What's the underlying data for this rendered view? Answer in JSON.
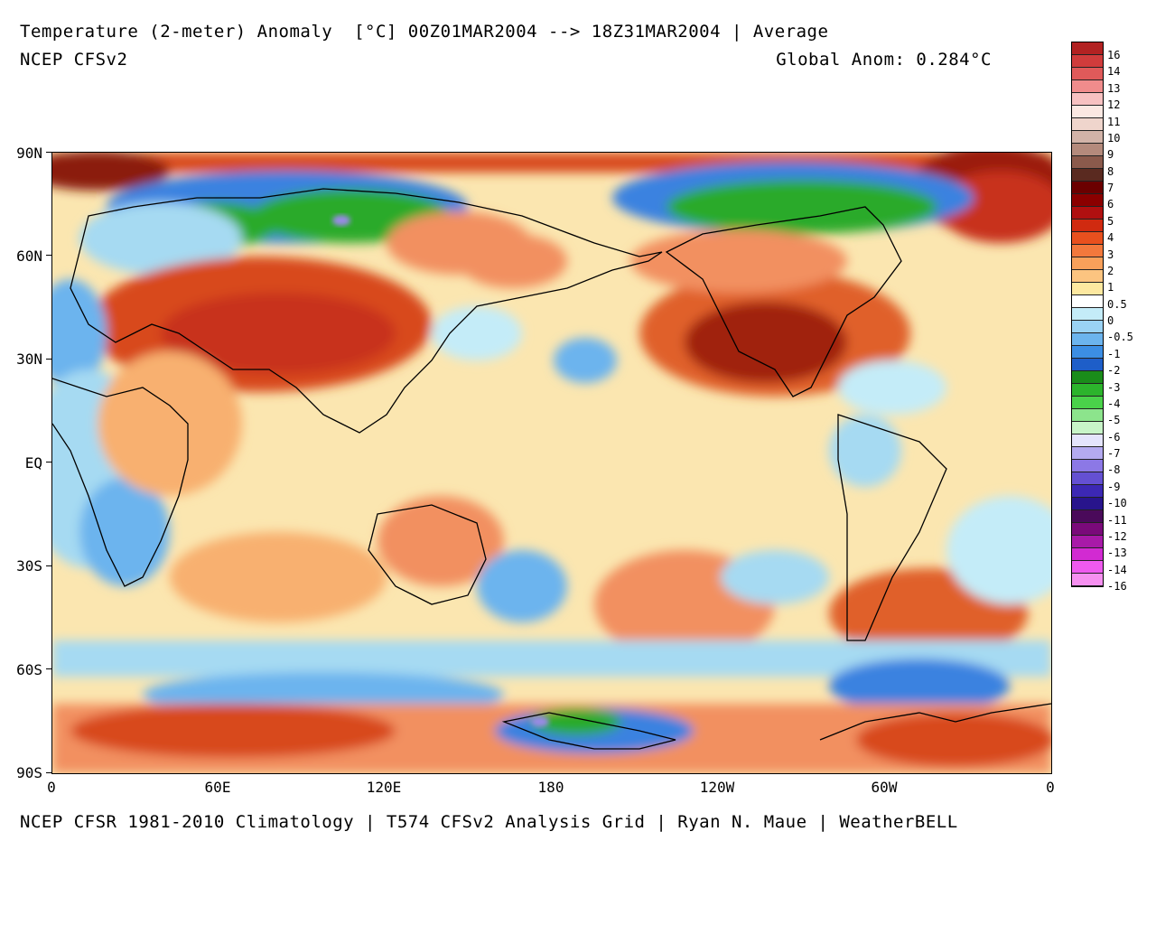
{
  "title": "Temperature (2-meter) Anomaly  [°C] 00Z01MAR2004 --> 18Z31MAR2004 | Average",
  "model": "NCEP CFSv2",
  "global_anomaly": "Global Anom: 0.284°C",
  "footer": "NCEP CFSR 1981-2010 Climatology | T574 CFSv2 Analysis Grid | Ryan N. Maue | WeatherBELL",
  "lat_labels": [
    "90N",
    "60N",
    "30N",
    "EQ",
    "30S",
    "60S",
    "90S"
  ],
  "lon_labels": [
    "0",
    "60E",
    "120E",
    "180",
    "120W",
    "60W",
    "0"
  ],
  "colorbar": {
    "labels": [
      "16",
      "14",
      "13",
      "12",
      "11",
      "10",
      "9",
      "8",
      "7",
      "6",
      "5",
      "4",
      "3",
      "2",
      "1",
      "0.5",
      "0",
      "-0.5",
      "-1",
      "-2",
      "-3",
      "-4",
      "-5",
      "-6",
      "-7",
      "-8",
      "-9",
      "-10",
      "-11",
      "-12",
      "-13",
      "-14",
      "-16"
    ],
    "colors": [
      "#b22222",
      "#d03c3c",
      "#e05a5a",
      "#f08c8c",
      "#f7c1c1",
      "#fbe8e2",
      "#efd5cc",
      "#d2b3a8",
      "#b48a7c",
      "#8b5a4c",
      "#5a2a20",
      "#6b0000",
      "#8b0000",
      "#b01010",
      "#d02a10",
      "#e8501e",
      "#f2783c",
      "#f8a05a",
      "#fcc480",
      "#fde8a0",
      "#ffffff",
      "#c4ecf8",
      "#9ad2f4",
      "#6cb4ee",
      "#3c8ee4",
      "#1e5ec8",
      "#1a8c1a",
      "#2cb42c",
      "#4ad24a",
      "#8ce48c",
      "#c8f4c8",
      "#e4e4fc",
      "#b4aaf0",
      "#8c78e6",
      "#6450d2",
      "#3c28b4",
      "#28148c",
      "#4a0a5a",
      "#7a0a7a",
      "#a81aa8",
      "#d22ad2",
      "#ee5aee",
      "#f690f0"
    ]
  },
  "colors": {
    "ocean_base": "#fbe6b0",
    "warm": "#f29060",
    "hot": "#c8301c",
    "very_hot": "#7a1010",
    "cool": "#a6daf2",
    "cold": "#3a82e0",
    "green": "#2caa2c",
    "purple": "#9a8ae6",
    "white": "#ffffff",
    "coast": "#000000"
  }
}
